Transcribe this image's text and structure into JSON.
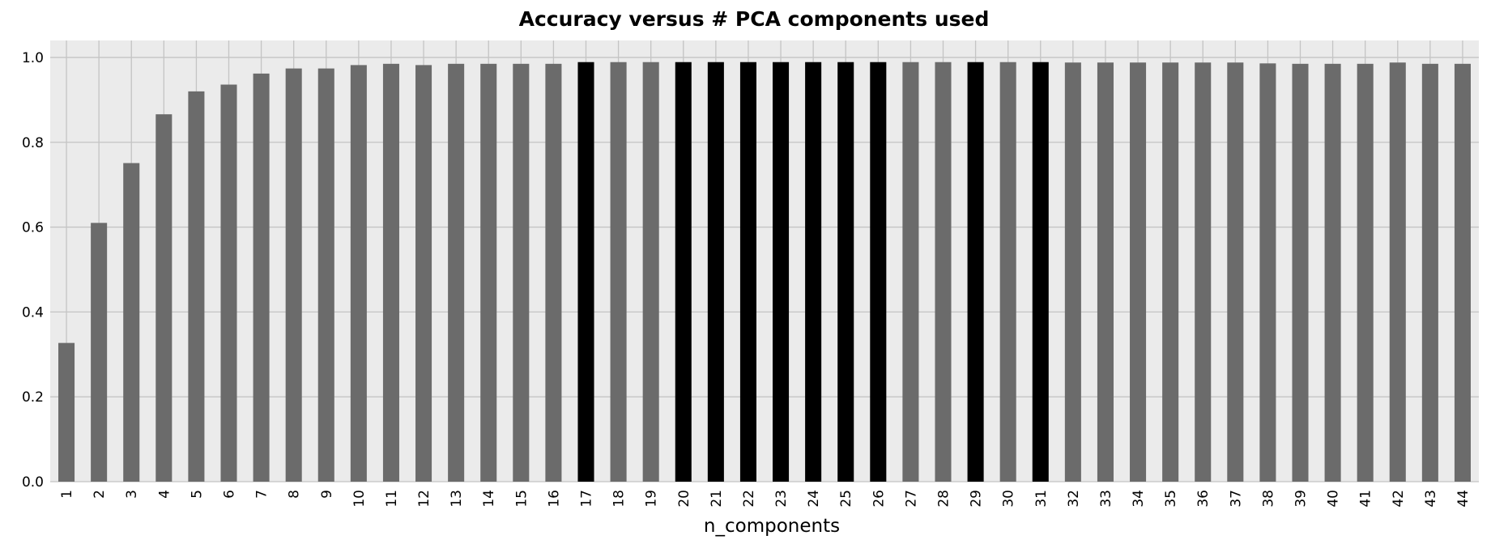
{
  "chart_data": {
    "type": "bar",
    "title": "Accuracy versus # PCA components used",
    "xlabel": "n_components",
    "ylabel": "",
    "categories": [
      "1",
      "2",
      "3",
      "4",
      "5",
      "6",
      "7",
      "8",
      "9",
      "10",
      "11",
      "12",
      "13",
      "14",
      "15",
      "16",
      "17",
      "18",
      "19",
      "20",
      "21",
      "22",
      "23",
      "24",
      "25",
      "26",
      "27",
      "28",
      "29",
      "30",
      "31",
      "32",
      "33",
      "34",
      "35",
      "36",
      "37",
      "38",
      "39",
      "40",
      "41",
      "42",
      "43",
      "44"
    ],
    "values": [
      0.327,
      0.61,
      0.751,
      0.866,
      0.92,
      0.936,
      0.962,
      0.974,
      0.974,
      0.982,
      0.985,
      0.982,
      0.985,
      0.985,
      0.985,
      0.985,
      0.989,
      0.989,
      0.989,
      0.989,
      0.989,
      0.989,
      0.989,
      0.989,
      0.989,
      0.989,
      0.989,
      0.989,
      0.989,
      0.989,
      0.989,
      0.988,
      0.988,
      0.988,
      0.988,
      0.988,
      0.988,
      0.986,
      0.985,
      0.985,
      0.985,
      0.988,
      0.985,
      0.985
    ],
    "highlighted": [
      "17",
      "20",
      "21",
      "22",
      "23",
      "24",
      "25",
      "26",
      "29",
      "31"
    ],
    "ylim": [
      0,
      1.04
    ],
    "yticks": [
      "0.0",
      "0.2",
      "0.4",
      "0.6",
      "0.8",
      "1.0"
    ],
    "ytick_values": [
      0,
      0.2,
      0.4,
      0.6,
      0.8,
      1.0
    ],
    "grid": true,
    "colors": {
      "bar": "#6b6b6b",
      "highlight": "#000000",
      "plot_bg": "#ebebeb",
      "grid": "#c4c4c4"
    }
  }
}
